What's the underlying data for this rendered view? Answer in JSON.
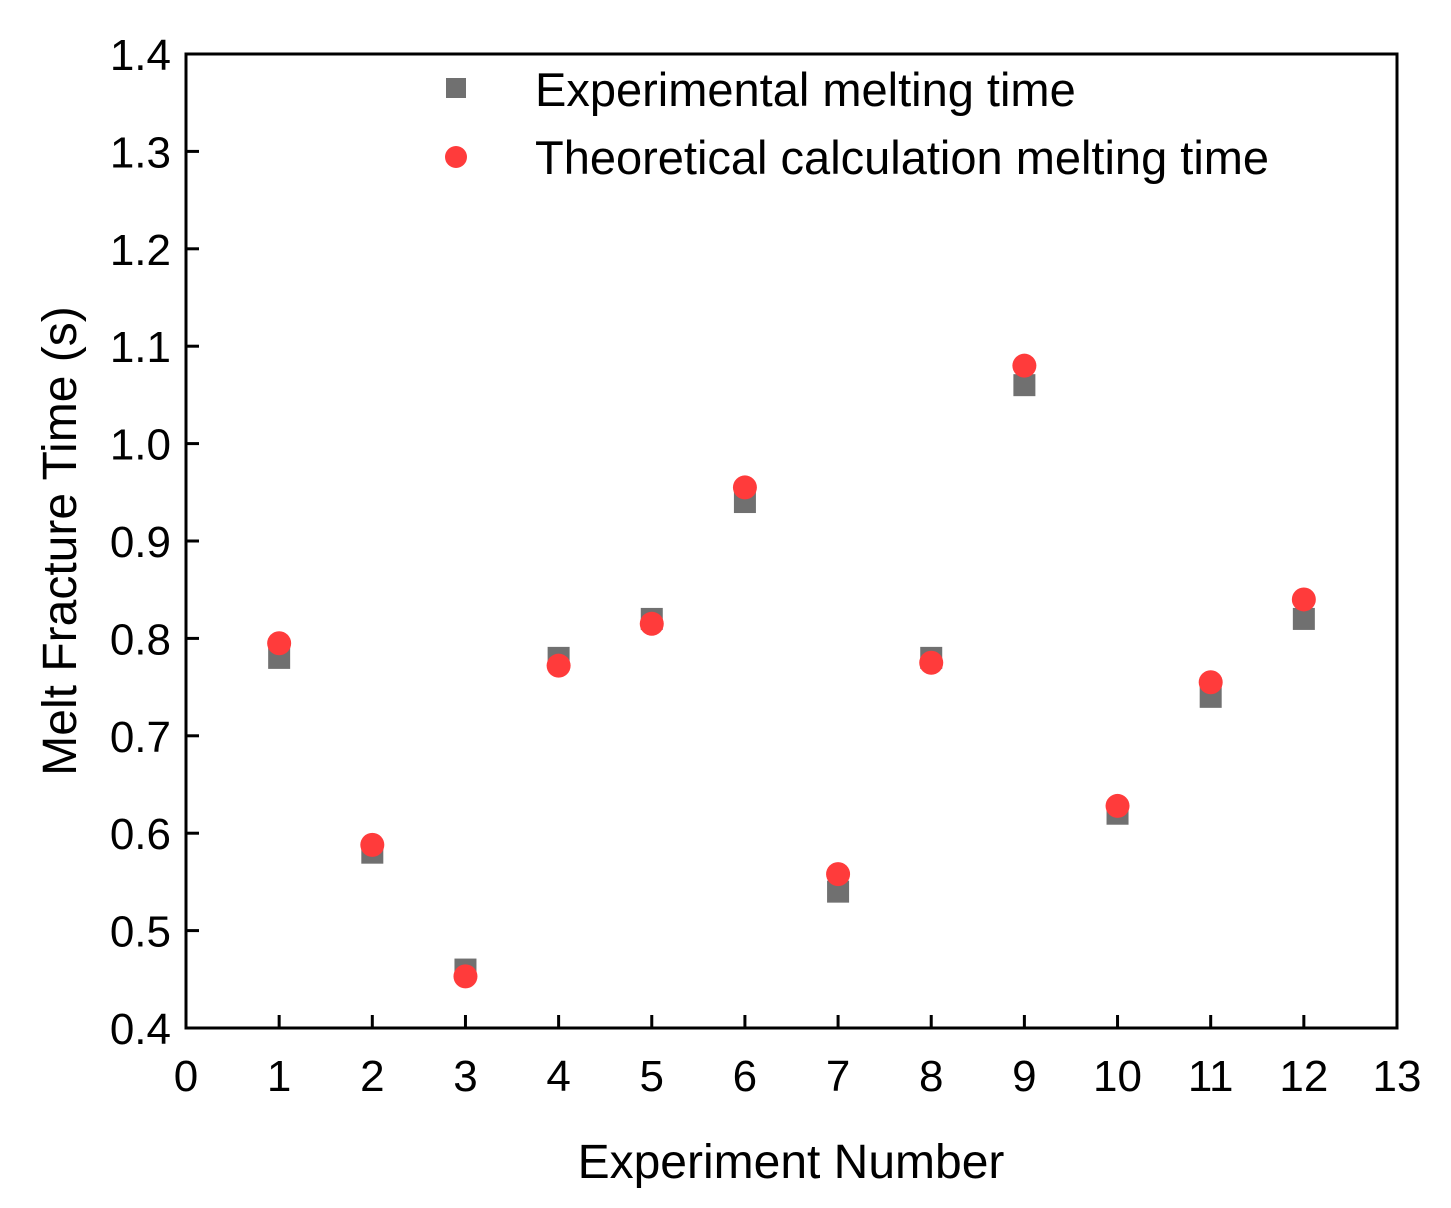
{
  "chart_data": {
    "type": "scatter",
    "title": "",
    "xlabel": "Experiment Number",
    "ylabel": "Melt Fracture Time (s)",
    "xlim": [
      0,
      13
    ],
    "ylim": [
      0.4,
      1.4
    ],
    "xticks": [
      0,
      1,
      2,
      3,
      4,
      5,
      6,
      7,
      8,
      9,
      10,
      11,
      12,
      13
    ],
    "yticks": [
      0.4,
      0.5,
      0.6,
      0.7,
      0.8,
      0.9,
      1.0,
      1.1,
      1.2,
      1.3,
      1.4
    ],
    "xtick_labels": [
      "0",
      "1",
      "2",
      "3",
      "4",
      "5",
      "6",
      "7",
      "8",
      "9",
      "10",
      "11",
      "12",
      "13"
    ],
    "ytick_labels": [
      "0.4",
      "0.5",
      "0.6",
      "0.7",
      "0.8",
      "0.9",
      "1.0",
      "1.1",
      "1.2",
      "1.3",
      "1.4"
    ],
    "grid": false,
    "legend_position": "top-right",
    "series": [
      {
        "name": "Experimental melting time",
        "marker": "square",
        "color": "#707070",
        "x": [
          1,
          2,
          3,
          4,
          5,
          6,
          7,
          8,
          9,
          10,
          11,
          12
        ],
        "y": [
          0.78,
          0.58,
          0.46,
          0.78,
          0.82,
          0.94,
          0.54,
          0.78,
          1.06,
          0.62,
          0.74,
          0.82
        ]
      },
      {
        "name": "Theoretical calculation melting time",
        "marker": "circle",
        "color": "#ff3b3b",
        "x": [
          1,
          2,
          3,
          4,
          5,
          6,
          7,
          8,
          9,
          10,
          11,
          12
        ],
        "y": [
          0.795,
          0.588,
          0.453,
          0.772,
          0.815,
          0.955,
          0.558,
          0.775,
          1.08,
          0.628,
          0.755,
          0.84
        ]
      }
    ]
  }
}
